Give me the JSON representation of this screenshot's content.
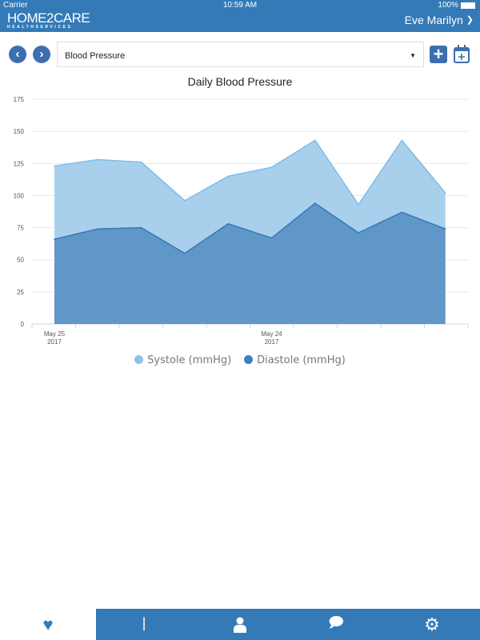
{
  "status": {
    "carrier": "Carrier",
    "time": "10:59 AM",
    "battery": "100%"
  },
  "header": {
    "logo_main": "HOME2CARE",
    "logo_sub": "HEALTHSERVICES",
    "user": "Eve Marilyn"
  },
  "toolbar": {
    "selected_measure": "Blood Pressure"
  },
  "chart_data": {
    "type": "area",
    "title": "Daily Blood Pressure",
    "x": [
      1,
      2,
      3,
      4,
      5,
      6,
      7,
      8,
      9,
      10
    ],
    "x_tick_labels": [
      {
        "index": 0,
        "line1": "May 25",
        "line2": "2017"
      },
      {
        "index": 5,
        "line1": "May 24",
        "line2": "2017"
      }
    ],
    "ylim": [
      0,
      175
    ],
    "yticks": [
      0,
      25,
      50,
      75,
      100,
      125,
      150,
      175
    ],
    "grid": true,
    "legend": "bottom-center",
    "series": [
      {
        "name": "Systole (mmHg)",
        "color": "#8cc4ea",
        "values": [
          123,
          128,
          126,
          96,
          115,
          122,
          143,
          93,
          143,
          102
        ]
      },
      {
        "name": "Diastole (mmHg)",
        "color": "#3d80bf",
        "values": [
          66,
          74,
          75,
          55,
          78,
          67,
          94,
          71,
          87,
          74
        ]
      }
    ]
  },
  "nav": [
    {
      "name": "heart-rate"
    },
    {
      "name": "bluetooth"
    },
    {
      "name": "profile"
    },
    {
      "name": "messages"
    },
    {
      "name": "settings"
    }
  ]
}
